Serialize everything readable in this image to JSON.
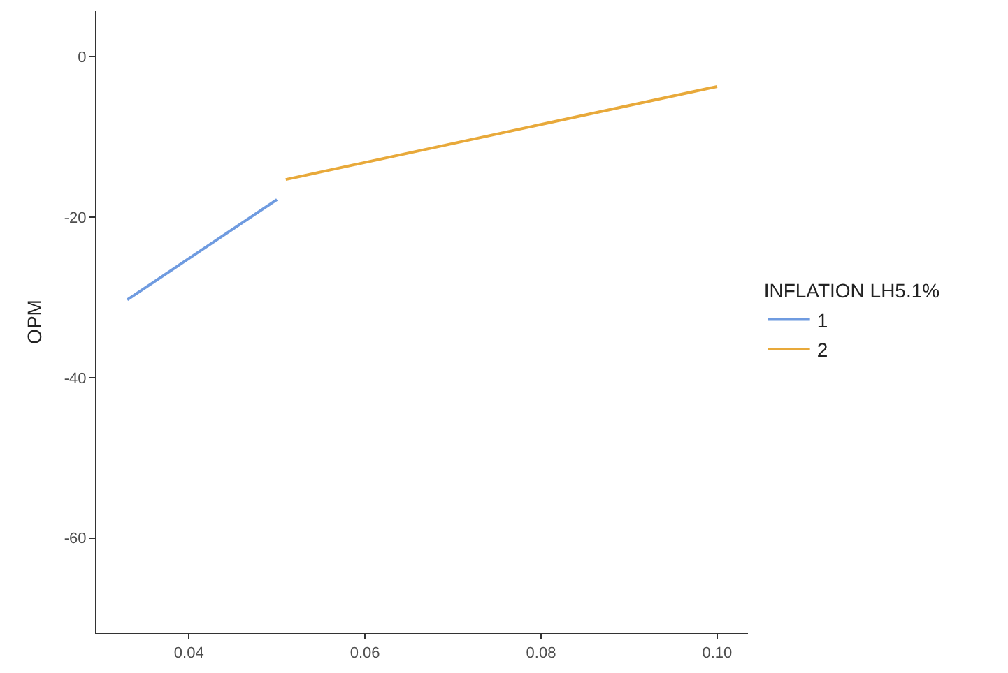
{
  "chart_data": {
    "type": "line",
    "ylabel": "OPM",
    "legend_title": "INFLATION LH5.1%",
    "legend": "right",
    "grid": false,
    "marker": "none",
    "line_style": "solid",
    "xlim": [
      0.0295,
      0.1035
    ],
    "xticks": [
      {
        "value": 0.04,
        "label": "0.04"
      },
      {
        "value": 0.06,
        "label": "0.06"
      },
      {
        "value": 0.08,
        "label": "0.08"
      },
      {
        "value": 0.1,
        "label": "0.10"
      }
    ],
    "ylim": [
      -71.8,
      5.7
    ],
    "yticks": [
      -60,
      -40,
      -20,
      0
    ],
    "series": [
      {
        "name": "1",
        "color": "#6f9be0",
        "x": [
          0.033,
          0.05
        ],
        "values": [
          -30.3,
          -17.8
        ]
      },
      {
        "name": "2",
        "color": "#e8a93a",
        "x": [
          0.051,
          0.1
        ],
        "values": [
          -15.3,
          -3.7
        ]
      }
    ]
  }
}
